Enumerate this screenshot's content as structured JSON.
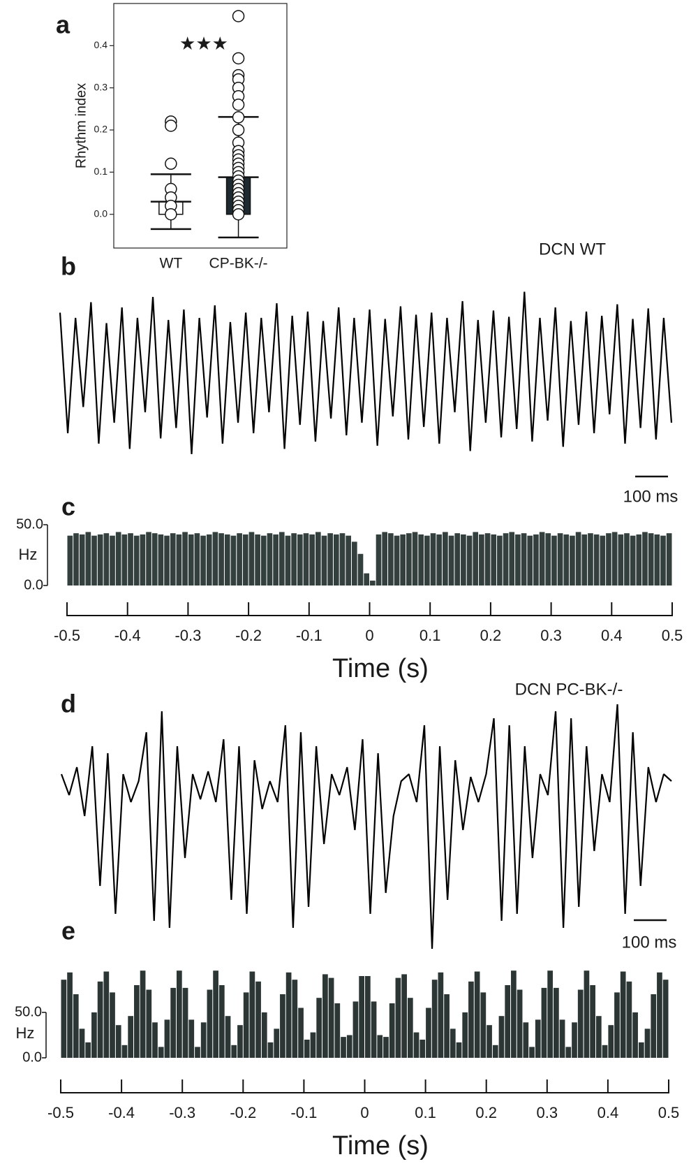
{
  "chart_data": [
    {
      "type": "bar",
      "panel_label": "a",
      "ylabel": "Rhythm index",
      "annotation": "★★★",
      "categories": [
        "WT",
        "CP-BK-/-"
      ],
      "values": [
        0.03,
        0.088
      ],
      "errors": [
        0.065,
        0.143
      ],
      "bar_colors": [
        "#ffffff",
        "#1e2a30"
      ],
      "points": [
        [
          0.22,
          0.21,
          0.12,
          0.06,
          0.04,
          0.02,
          0.0
        ],
        [
          0.47,
          0.37,
          0.33,
          0.32,
          0.3,
          0.28,
          0.26,
          0.23,
          0.2,
          0.17,
          0.15,
          0.14,
          0.13,
          0.12,
          0.11,
          0.1,
          0.09,
          0.08,
          0.07,
          0.06,
          0.05,
          0.04,
          0.03,
          0.02,
          0.01,
          0.0
        ]
      ],
      "ylim": [
        -0.08,
        0.5
      ],
      "yticks": [
        {
          "value": 0,
          "label": "0.0"
        },
        0.1,
        0.2,
        0.3,
        0.4
      ]
    },
    {
      "type": "line",
      "panel_label": "b",
      "title": "DCN WT",
      "scale_bar": "100 ms",
      "color": "#000000",
      "values": [
        0.35,
        -0.8,
        0.3,
        -0.55,
        0.45,
        -0.9,
        0.25,
        -0.7,
        0.4,
        -0.95,
        0.3,
        -0.6,
        0.5,
        -0.85,
        0.28,
        -0.75,
        0.38,
        -1.0,
        0.3,
        -0.65,
        0.42,
        -0.9,
        0.26,
        -0.7,
        0.35,
        -0.8,
        0.3,
        -0.6,
        0.44,
        -0.95,
        0.32,
        -0.72,
        0.36,
        -0.88,
        0.27,
        -0.66,
        0.4,
        -0.82,
        0.3,
        -0.7,
        0.38,
        -0.92,
        0.29,
        -0.64,
        0.41,
        -0.86,
        0.33,
        -0.74,
        0.35,
        -0.9,
        0.3,
        -0.6,
        0.46,
        -0.97,
        0.28,
        -0.7,
        0.37,
        -0.84,
        0.31,
        -0.76,
        0.55,
        -0.88,
        0.3,
        -0.68,
        0.4,
        -0.93,
        0.27,
        -0.72,
        0.36,
        -0.8,
        0.32,
        -0.62,
        0.43,
        -0.9,
        0.29,
        -0.75,
        0.39,
        -0.86,
        0.3,
        -0.7
      ]
    },
    {
      "type": "histogram",
      "panel_label": "c",
      "xlabel": "Time (s)",
      "ylabel": "Hz",
      "color": "#34403e",
      "bins": [
        -0.5,
        -0.49,
        -0.48,
        -0.47,
        -0.46,
        -0.45,
        -0.44,
        -0.43,
        -0.42,
        -0.41,
        -0.4,
        -0.39,
        -0.38,
        -0.37,
        -0.36,
        -0.35,
        -0.34,
        -0.33,
        -0.32,
        -0.31,
        -0.3,
        -0.29,
        -0.28,
        -0.27,
        -0.26,
        -0.25,
        -0.24,
        -0.23,
        -0.22,
        -0.21,
        -0.2,
        -0.19,
        -0.18,
        -0.17,
        -0.16,
        -0.15,
        -0.14,
        -0.13,
        -0.12,
        -0.11,
        -0.1,
        -0.09,
        -0.08,
        -0.07,
        -0.06,
        -0.05,
        -0.04,
        -0.03,
        -0.02,
        -0.01,
        0,
        0.01,
        0.02,
        0.03,
        0.04,
        0.05,
        0.06,
        0.07,
        0.08,
        0.09,
        0.1,
        0.11,
        0.12,
        0.13,
        0.14,
        0.15,
        0.16,
        0.17,
        0.18,
        0.19,
        0.2,
        0.21,
        0.22,
        0.23,
        0.24,
        0.25,
        0.26,
        0.27,
        0.28,
        0.29,
        0.3,
        0.31,
        0.32,
        0.33,
        0.34,
        0.35,
        0.36,
        0.37,
        0.38,
        0.39,
        0.4,
        0.41,
        0.42,
        0.43,
        0.44,
        0.45,
        0.46,
        0.47,
        0.48,
        0.49,
        0.5
      ],
      "values": [
        41,
        43,
        42,
        44,
        41,
        42,
        43,
        41,
        44,
        42,
        43,
        41,
        42,
        44,
        43,
        42,
        41,
        43,
        42,
        44,
        42,
        43,
        41,
        42,
        44,
        43,
        42,
        41,
        43,
        42,
        44,
        42,
        41,
        43,
        42,
        44,
        41,
        43,
        42,
        43,
        42,
        44,
        41,
        43,
        42,
        43,
        41,
        36,
        26,
        10,
        4,
        42,
        44,
        43,
        41,
        42,
        43,
        44,
        42,
        41,
        43,
        42,
        44,
        41,
        43,
        42,
        41,
        44,
        42,
        43,
        42,
        41,
        43,
        44,
        42,
        43,
        41,
        42,
        44,
        43,
        41,
        43,
        42,
        41,
        44,
        42,
        43,
        42,
        41,
        43,
        44,
        42,
        43,
        41,
        42,
        44,
        43,
        42,
        41,
        43
      ],
      "xlim": [
        -0.5,
        0.5
      ],
      "xticks": [
        -0.5,
        -0.4,
        -0.3,
        -0.2,
        -0.1,
        0,
        0.1,
        0.2,
        0.3,
        0.4,
        0.5
      ],
      "ylim": [
        0,
        50
      ],
      "yticks": [
        {
          "value": 0,
          "label": "0.0"
        },
        {
          "value": 50,
          "label": "50.0"
        }
      ]
    },
    {
      "type": "line",
      "panel_label": "d",
      "title": "DCN PC-BK-/-",
      "scale_bar": "100 ms",
      "color": "#000000",
      "values": [
        0.1,
        -0.05,
        0.15,
        -0.2,
        0.3,
        -0.7,
        0.25,
        -0.9,
        0.1,
        -0.1,
        0.05,
        0.4,
        -0.95,
        0.55,
        -1.0,
        0.3,
        -0.5,
        0.1,
        -0.08,
        0.12,
        -0.1,
        0.35,
        -0.8,
        0.3,
        -0.9,
        0.2,
        -0.15,
        0.05,
        -0.1,
        0.45,
        -1.0,
        0.4,
        -0.85,
        0.3,
        -0.4,
        0.1,
        -0.05,
        0.15,
        -0.3,
        0.35,
        -0.9,
        0.25,
        -0.75,
        -0.2,
        0.05,
        0.1,
        -0.1,
        0.45,
        -1.15,
        0.3,
        -0.8,
        0.2,
        -0.3,
        0.08,
        -0.1,
        0.1,
        0.5,
        -0.95,
        0.45,
        -0.9,
        0.3,
        -0.5,
        0.1,
        -0.05,
        0.55,
        -1.0,
        0.5,
        -0.85,
        0.3,
        -0.45,
        0.1,
        -0.1,
        0.6,
        -0.9,
        0.4,
        -0.7,
        0.15,
        -0.1,
        0.1,
        0.05
      ]
    },
    {
      "type": "histogram",
      "panel_label": "e",
      "xlabel": "Time (s)",
      "ylabel": "Hz",
      "color": "#2c3735",
      "bins": [
        -0.5,
        -0.49,
        -0.48,
        -0.47,
        -0.46,
        -0.45,
        -0.44,
        -0.43,
        -0.42,
        -0.41,
        -0.4,
        -0.39,
        -0.38,
        -0.37,
        -0.36,
        -0.35,
        -0.34,
        -0.33,
        -0.32,
        -0.31,
        -0.3,
        -0.29,
        -0.28,
        -0.27,
        -0.26,
        -0.25,
        -0.24,
        -0.23,
        -0.22,
        -0.21,
        -0.2,
        -0.19,
        -0.18,
        -0.17,
        -0.16,
        -0.15,
        -0.14,
        -0.13,
        -0.12,
        -0.11,
        -0.1,
        -0.09,
        -0.08,
        -0.07,
        -0.06,
        -0.05,
        -0.04,
        -0.03,
        -0.02,
        -0.01,
        0,
        0.01,
        0.02,
        0.03,
        0.04,
        0.05,
        0.06,
        0.07,
        0.08,
        0.09,
        0.1,
        0.11,
        0.12,
        0.13,
        0.14,
        0.15,
        0.16,
        0.17,
        0.18,
        0.19,
        0.2,
        0.21,
        0.22,
        0.23,
        0.24,
        0.25,
        0.26,
        0.27,
        0.28,
        0.29,
        0.3,
        0.31,
        0.32,
        0.33,
        0.34,
        0.35,
        0.36,
        0.37,
        0.38,
        0.39,
        0.4,
        0.41,
        0.42,
        0.43,
        0.44,
        0.45,
        0.46,
        0.47,
        0.48,
        0.49,
        0.5
      ],
      "values": [
        86,
        94,
        70,
        32,
        17,
        50,
        84,
        95,
        72,
        36,
        14,
        46,
        80,
        96,
        75,
        39,
        12,
        42,
        77,
        96,
        77,
        42,
        12,
        39,
        75,
        96,
        80,
        46,
        14,
        36,
        72,
        95,
        84,
        50,
        17,
        32,
        70,
        94,
        86,
        55,
        20,
        28,
        66,
        92,
        88,
        60,
        23,
        25,
        62,
        90,
        90,
        62,
        25,
        23,
        60,
        88,
        92,
        66,
        28,
        20,
        55,
        86,
        94,
        70,
        32,
        17,
        50,
        84,
        95,
        72,
        36,
        14,
        46,
        80,
        96,
        75,
        39,
        12,
        42,
        77,
        96,
        77,
        42,
        12,
        39,
        75,
        96,
        80,
        46,
        14,
        36,
        72,
        95,
        84,
        50,
        17,
        32,
        70,
        94,
        86
      ],
      "xlim": [
        -0.5,
        0.5
      ],
      "xticks": [
        -0.5,
        -0.4,
        -0.3,
        -0.2,
        -0.1,
        0,
        0.1,
        0.2,
        0.3,
        0.4,
        0.5
      ],
      "ylim": [
        0,
        100
      ],
      "yticks": [
        {
          "value": 0,
          "label": "0.0"
        },
        {
          "value": 50,
          "label": "50.0"
        }
      ]
    }
  ]
}
